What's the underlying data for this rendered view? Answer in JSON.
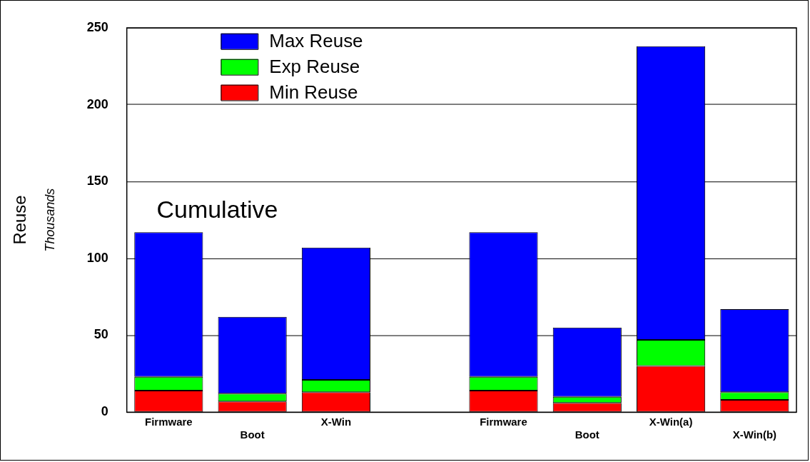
{
  "chart_data": {
    "type": "bar",
    "stacked": true,
    "ylabel": "Reuse",
    "annotations": [
      "Cumulative",
      "Thousands"
    ],
    "categories": [
      "Firmware",
      "Boot",
      "X-Win",
      null,
      "Firmware",
      "Boot",
      "X-Win(a)",
      "X-Win(b)"
    ],
    "series": [
      {
        "name": "Min Reuse",
        "color": "#ff0000",
        "values": [
          14,
          7,
          13,
          null,
          14,
          6,
          30,
          8
        ]
      },
      {
        "name": "Exp Reuse",
        "color": "#00ff00",
        "values": [
          9,
          5,
          8,
          null,
          9,
          4,
          17,
          5
        ]
      },
      {
        "name": "Max Reuse",
        "color": "#0000ff",
        "values": [
          94,
          50,
          86,
          null,
          94,
          45,
          191,
          54
        ]
      }
    ],
    "ylim": [
      0,
      250
    ],
    "yticks": [
      0,
      50,
      100,
      150,
      200,
      250
    ],
    "grid": "y",
    "legend": "top left"
  }
}
